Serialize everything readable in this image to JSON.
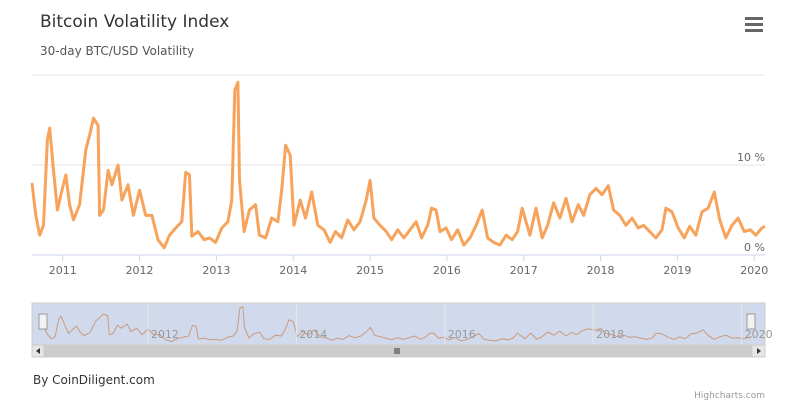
{
  "chart_data": {
    "type": "line",
    "title": "Bitcoin Volatility Index",
    "subtitle": "30-day BTC/USD Volatility",
    "credit": "By CoinDiligent.com",
    "credits_link": "Highcharts.com",
    "xlim": [
      2010.6,
      2020.14
    ],
    "xticks": [
      2011,
      2012,
      2013,
      2014,
      2015,
      2016,
      2017,
      2018,
      2019,
      2020
    ],
    "navigator_xticks": [
      2012,
      2014,
      2016,
      2018,
      2020
    ],
    "ylim": [
      0,
      20
    ],
    "yticks": [
      {
        "value": 0,
        "label": "0 %"
      },
      {
        "value": 10,
        "label": "10 %"
      }
    ],
    "grid": true,
    "x": [
      2010.6,
      2010.65,
      2010.7,
      2010.75,
      2010.8,
      2010.83,
      2010.88,
      2010.93,
      2010.99,
      2011.04,
      2011.09,
      2011.14,
      2011.22,
      2011.3,
      2011.35,
      2011.4,
      2011.46,
      2011.48,
      2011.53,
      2011.59,
      2011.64,
      2011.72,
      2011.77,
      2011.85,
      2011.92,
      2012.0,
      2012.08,
      2012.16,
      2012.24,
      2012.32,
      2012.39,
      2012.47,
      2012.55,
      2012.6,
      2012.65,
      2012.68,
      2012.76,
      2012.84,
      2012.91,
      2012.99,
      2013.07,
      2013.15,
      2013.2,
      2013.24,
      2013.28,
      2013.3,
      2013.36,
      2013.43,
      2013.51,
      2013.56,
      2013.64,
      2013.72,
      2013.8,
      2013.85,
      2013.9,
      2013.96,
      2014.01,
      2014.09,
      2014.16,
      2014.24,
      2014.32,
      2014.4,
      2014.48,
      2014.55,
      2014.63,
      2014.71,
      2014.79,
      2014.87,
      2014.95,
      2015.0,
      2015.05,
      2015.13,
      2015.21,
      2015.28,
      2015.36,
      2015.44,
      2015.52,
      2015.6,
      2015.67,
      2015.75,
      2015.8,
      2015.86,
      2015.91,
      2015.99,
      2016.06,
      2016.14,
      2016.22,
      2016.3,
      2016.38,
      2016.46,
      2016.53,
      2016.61,
      2016.69,
      2016.77,
      2016.85,
      2016.92,
      2016.98,
      2017.03,
      2017.08,
      2017.16,
      2017.24,
      2017.31,
      2017.39,
      2017.47,
      2017.55,
      2017.63,
      2017.71,
      2017.78,
      2017.86,
      2017.94,
      2018.02,
      2018.1,
      2018.17,
      2018.25,
      2018.33,
      2018.41,
      2018.49,
      2018.56,
      2018.64,
      2018.72,
      2018.8,
      2018.85,
      2018.93,
      2019.01,
      2019.09,
      2019.16,
      2019.24,
      2019.32,
      2019.4,
      2019.48,
      2019.55,
      2019.63,
      2019.71,
      2019.79,
      2019.87,
      2019.95,
      2020.02,
      2020.1,
      2020.14
    ],
    "series": [
      {
        "color": "#f7a35c",
        "values": [
          8.0,
          4.4,
          2.2,
          3.3,
          12.8,
          14.1,
          9.4,
          5.0,
          7.2,
          8.9,
          5.6,
          3.9,
          5.6,
          11.7,
          13.3,
          15.2,
          14.4,
          4.4,
          5.0,
          9.4,
          7.8,
          10.0,
          6.1,
          7.8,
          4.4,
          7.2,
          4.4,
          4.4,
          1.7,
          0.8,
          2.2,
          3.0,
          3.7,
          9.2,
          8.9,
          2.1,
          2.6,
          1.7,
          1.9,
          1.4,
          3.0,
          3.7,
          6.1,
          18.3,
          19.2,
          8.3,
          2.6,
          5.0,
          5.6,
          2.2,
          1.9,
          4.1,
          3.7,
          7.2,
          12.2,
          11.1,
          3.3,
          6.1,
          4.1,
          7.0,
          3.3,
          2.8,
          1.4,
          2.6,
          1.9,
          3.9,
          2.8,
          3.7,
          6.1,
          8.3,
          4.1,
          3.3,
          2.6,
          1.7,
          2.8,
          1.9,
          2.8,
          3.7,
          1.9,
          3.3,
          5.2,
          5.0,
          2.6,
          3.0,
          1.7,
          2.8,
          1.1,
          1.9,
          3.3,
          5.0,
          1.9,
          1.4,
          1.1,
          2.2,
          1.7,
          2.6,
          5.2,
          3.7,
          2.2,
          5.2,
          1.9,
          3.3,
          5.8,
          4.1,
          6.3,
          3.7,
          5.6,
          4.4,
          6.7,
          7.4,
          6.7,
          7.7,
          5.0,
          4.4,
          3.3,
          4.1,
          3.0,
          3.3,
          2.6,
          1.9,
          2.8,
          5.2,
          4.8,
          3.0,
          1.9,
          3.2,
          2.2,
          4.8,
          5.2,
          7.0,
          3.9,
          1.9,
          3.3,
          4.1,
          2.6,
          2.8,
          2.2,
          3.0,
          3.2
        ]
      }
    ]
  }
}
